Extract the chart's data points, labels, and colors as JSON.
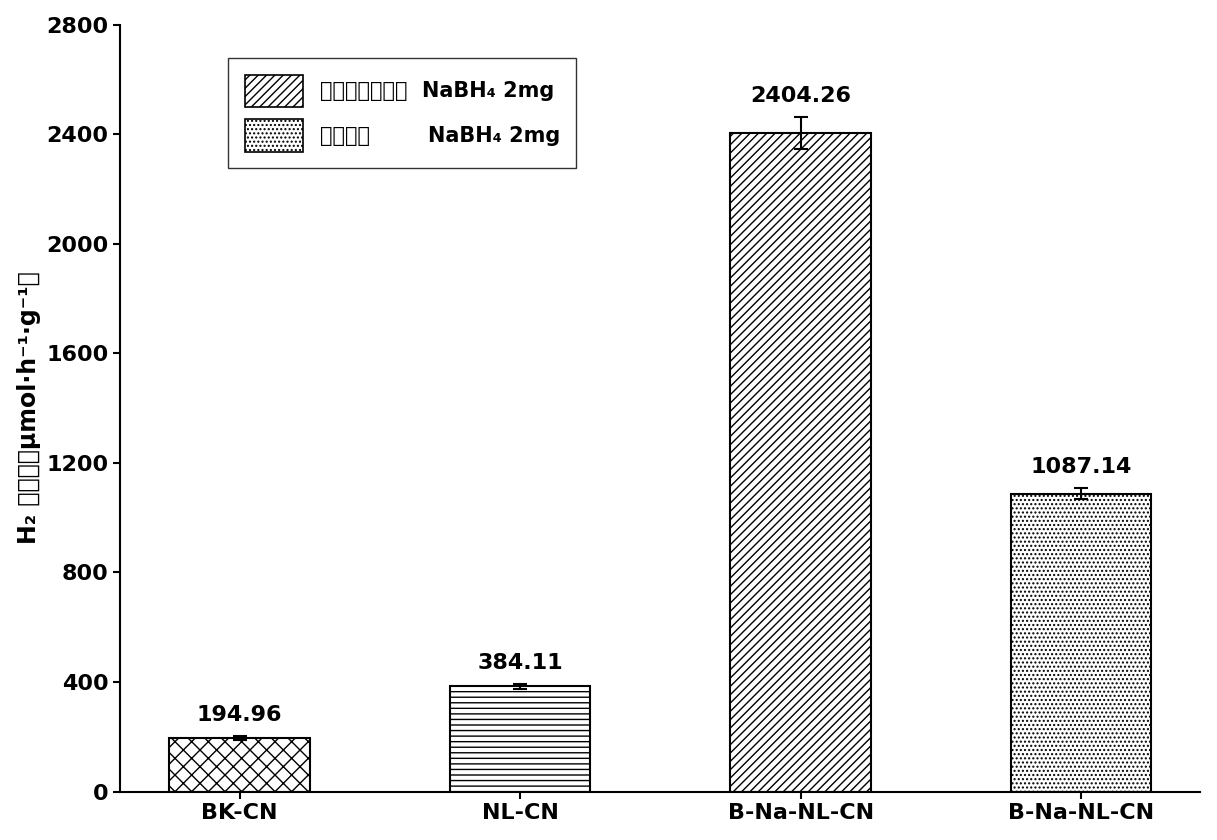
{
  "categories": [
    "BK-CN",
    "NL-CN",
    "B-Na-NL-CN",
    "B-Na-NL-CN"
  ],
  "values": [
    194.96,
    384.11,
    2404.26,
    1087.14
  ],
  "errors": [
    8,
    8,
    60,
    20
  ],
  "bar_labels": [
    "194.96",
    "384.11",
    "2404.26",
    "1087.14"
  ],
  "ylim": [
    0,
    2800
  ],
  "yticks": [
    0,
    400,
    800,
    1200,
    1600,
    2000,
    2400,
    2800
  ],
  "hatch_list": [
    "xx",
    "---",
    "////",
    "...."
  ],
  "background_color": "white",
  "figsize": [
    12.17,
    8.4
  ],
  "dpi": 100,
  "label_fontsize": 17,
  "tick_fontsize": 16,
  "legend_fontsize": 15,
  "value_label_fontsize": 16,
  "bar_width": 0.5
}
